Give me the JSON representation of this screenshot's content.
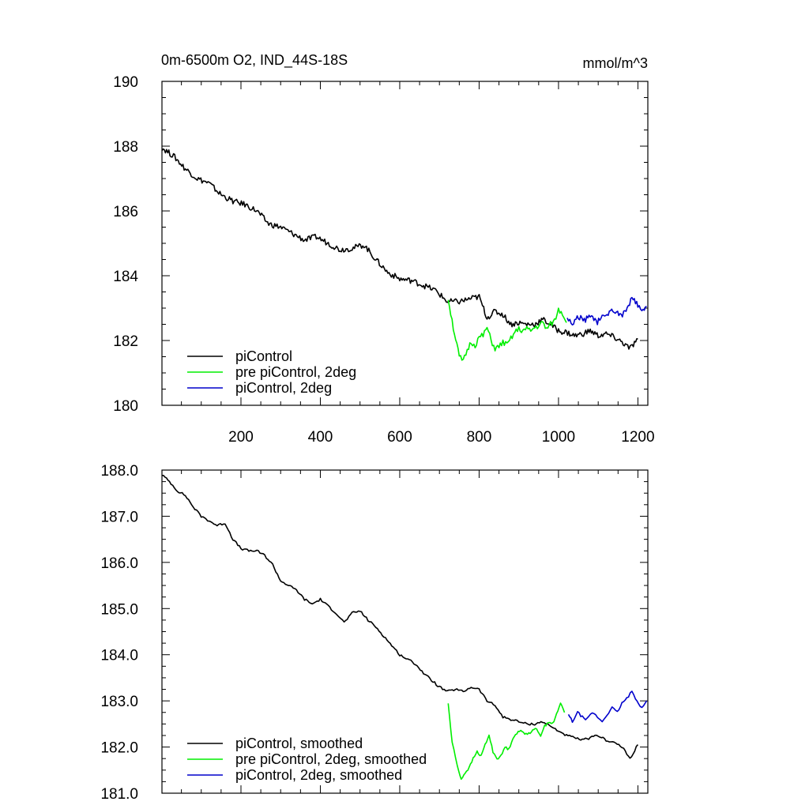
{
  "chart_data": [
    {
      "type": "line",
      "title": "0m-6500m O2, IND_44S-18S",
      "units": "mmol/m^3",
      "xlabel": "",
      "ylabel": "",
      "xlim": [
        1,
        1225
      ],
      "ylim": [
        180,
        190
      ],
      "xticks": [
        200,
        400,
        600,
        800,
        1000,
        1200
      ],
      "xtick_labels": [
        "200",
        "400",
        "600",
        "800",
        "1000",
        "1200"
      ],
      "yticks": [
        180,
        182,
        184,
        186,
        188,
        190
      ],
      "ytick_labels": [
        "180",
        "182",
        "184",
        "186",
        "188",
        "190"
      ],
      "legend_position": "bottom-left",
      "series": [
        {
          "name": "piControl",
          "color": "#000000",
          "x": [
            1,
            30,
            60,
            90,
            120,
            150,
            180,
            210,
            240,
            270,
            300,
            330,
            360,
            390,
            420,
            450,
            480,
            510,
            540,
            570,
            600,
            630,
            660,
            690,
            720,
            750,
            780,
            800,
            820,
            840,
            860,
            880,
            900,
            920,
            940,
            960,
            980,
            1000,
            1020,
            1040,
            1060,
            1080,
            1100,
            1120,
            1140,
            1160,
            1180,
            1200
          ],
          "y": [
            187.95,
            187.7,
            187.3,
            187.0,
            186.85,
            186.5,
            186.3,
            186.2,
            186.0,
            185.6,
            185.5,
            185.3,
            185.1,
            185.2,
            185.0,
            184.8,
            184.85,
            184.95,
            184.5,
            184.1,
            183.9,
            183.85,
            183.7,
            183.55,
            183.2,
            183.2,
            183.3,
            183.35,
            182.7,
            182.9,
            182.8,
            182.5,
            182.55,
            182.5,
            182.5,
            182.65,
            182.5,
            182.3,
            182.25,
            182.15,
            182.2,
            182.3,
            182.15,
            182.2,
            182.1,
            181.95,
            181.75,
            182.05
          ]
        },
        {
          "name": "pre piControl, 2deg",
          "color": "#00ee00",
          "x": [
            722,
            735,
            750,
            760,
            770,
            780,
            790,
            800,
            810,
            820,
            830,
            840,
            850,
            860,
            870,
            880,
            890,
            900,
            910,
            920,
            930,
            940,
            950,
            960,
            970,
            980,
            990,
            1000,
            1010,
            1020
          ],
          "y": [
            183.3,
            182.4,
            181.5,
            181.35,
            181.7,
            181.95,
            181.85,
            182.1,
            182.15,
            182.4,
            182.0,
            181.75,
            181.8,
            181.95,
            181.85,
            182.05,
            182.25,
            182.35,
            182.3,
            182.35,
            182.3,
            182.4,
            182.45,
            182.55,
            182.35,
            182.5,
            182.6,
            182.95,
            182.85,
            182.55
          ]
        },
        {
          "name": "piControl, 2deg",
          "color": "#0000cc",
          "x": [
            1022,
            1035,
            1050,
            1065,
            1080,
            1095,
            1110,
            1125,
            1140,
            1155,
            1170,
            1185,
            1200,
            1210,
            1222
          ],
          "y": [
            182.7,
            182.5,
            182.75,
            182.6,
            182.8,
            182.55,
            182.7,
            182.85,
            182.95,
            182.75,
            182.9,
            183.3,
            183.1,
            182.85,
            183.05
          ]
        }
      ]
    },
    {
      "type": "line",
      "title": "",
      "xlim": [
        1,
        1225
      ],
      "ylim": [
        181.0,
        188.0
      ],
      "xticks": [
        200,
        400,
        600,
        800,
        1000,
        1200
      ],
      "yticks": [
        181.0,
        182.0,
        183.0,
        184.0,
        185.0,
        186.0,
        187.0,
        188.0
      ],
      "ytick_labels": [
        "181.0",
        "182.0",
        "183.0",
        "184.0",
        "185.0",
        "186.0",
        "187.0",
        "188.0"
      ],
      "legend_position": "bottom-left",
      "series": [
        {
          "name": "piControl, smoothed",
          "color": "#000000",
          "x": [
            1,
            20,
            40,
            60,
            80,
            100,
            120,
            140,
            160,
            180,
            200,
            220,
            240,
            260,
            280,
            300,
            320,
            340,
            360,
            380,
            400,
            420,
            440,
            460,
            480,
            500,
            520,
            540,
            560,
            580,
            600,
            620,
            640,
            660,
            680,
            700,
            720,
            740,
            760,
            780,
            800,
            820,
            840,
            860,
            880,
            900,
            920,
            940,
            960,
            980,
            1000,
            1020,
            1040,
            1060,
            1080,
            1100,
            1120,
            1140,
            1160,
            1180,
            1200
          ],
          "y": [
            187.9,
            187.75,
            187.55,
            187.45,
            187.2,
            187.0,
            186.9,
            186.8,
            186.85,
            186.5,
            186.3,
            186.25,
            186.25,
            186.15,
            185.95,
            185.6,
            185.5,
            185.4,
            185.2,
            185.1,
            185.2,
            185.05,
            184.9,
            184.7,
            184.9,
            184.95,
            184.75,
            184.6,
            184.4,
            184.2,
            184.0,
            183.9,
            183.8,
            183.6,
            183.45,
            183.3,
            183.2,
            183.25,
            183.2,
            183.3,
            183.25,
            183.0,
            182.9,
            182.65,
            182.6,
            182.55,
            182.5,
            182.5,
            182.55,
            182.45,
            182.35,
            182.25,
            182.2,
            182.15,
            182.2,
            182.25,
            182.15,
            182.1,
            182.0,
            181.75,
            182.05
          ]
        },
        {
          "name": "pre piControl, 2deg, smoothed",
          "color": "#00ee00",
          "x": [
            722,
            732,
            745,
            755,
            765,
            775,
            785,
            795,
            805,
            815,
            825,
            835,
            845,
            855,
            865,
            875,
            885,
            895,
            905,
            915,
            925,
            935,
            945,
            955,
            965,
            975,
            985,
            995,
            1005,
            1015
          ],
          "y": [
            182.95,
            182.1,
            181.6,
            181.3,
            181.45,
            181.55,
            181.75,
            181.9,
            181.8,
            182.05,
            182.25,
            181.9,
            181.75,
            181.8,
            182.0,
            181.95,
            182.2,
            182.3,
            182.35,
            182.3,
            182.3,
            182.35,
            182.4,
            182.25,
            182.45,
            182.55,
            182.5,
            182.7,
            182.95,
            182.75
          ]
        },
        {
          "name": "piControl, 2deg, smoothed",
          "color": "#0000cc",
          "x": [
            1025,
            1035,
            1048,
            1060,
            1072,
            1085,
            1098,
            1110,
            1122,
            1135,
            1148,
            1160,
            1172,
            1185,
            1198,
            1210,
            1222
          ],
          "y": [
            182.7,
            182.55,
            182.75,
            182.65,
            182.6,
            182.75,
            182.65,
            182.55,
            182.7,
            182.85,
            182.75,
            182.95,
            183.05,
            183.2,
            183.0,
            182.85,
            183.0
          ]
        }
      ]
    }
  ]
}
